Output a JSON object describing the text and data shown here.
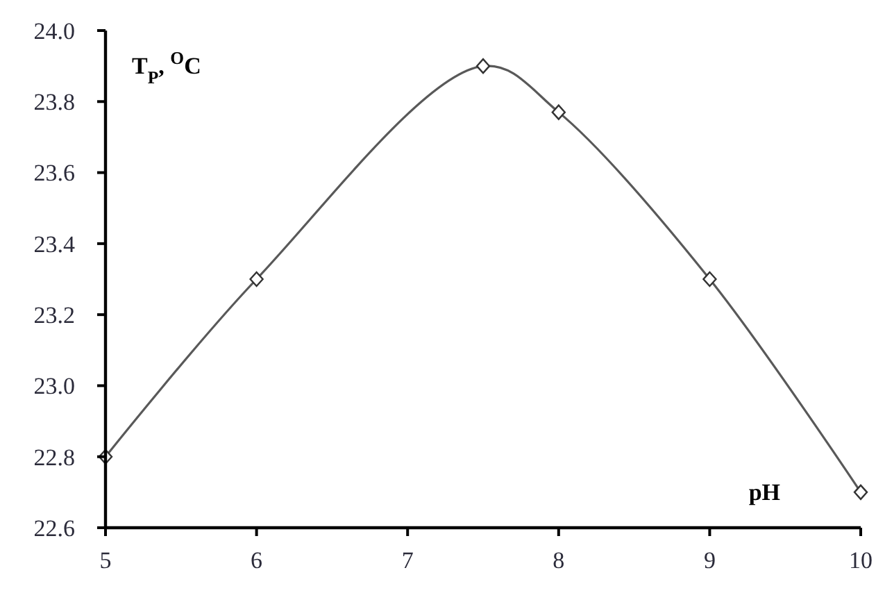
{
  "chart_data": {
    "type": "line",
    "xlabel": "pH",
    "ylabel": "T$_{P}$, $^{O}$C",
    "x": [
      5,
      6,
      7.5,
      8,
      9,
      10
    ],
    "series": [
      {
        "color": "#595959",
        "values": [
          22.8,
          23.3,
          23.9,
          23.77,
          23.3,
          22.7
        ]
      }
    ],
    "xlim": [
      5,
      10
    ],
    "xticks": [
      5,
      6,
      7,
      8,
      9,
      10
    ],
    "ylim": [
      22.6,
      24.0
    ],
    "yticks": [
      {
        "value": 22.6,
        "label": "22.6"
      },
      {
        "value": 22.8,
        "label": "22.8"
      },
      {
        "value": 23.0,
        "label": "23.0"
      },
      {
        "value": 23.2,
        "label": "23.2"
      },
      {
        "value": 23.4,
        "label": "23.4"
      },
      {
        "value": 23.6,
        "label": "23.6"
      },
      {
        "value": 23.8,
        "label": "23.8"
      },
      {
        "value": 24.0,
        "label": "24.0"
      }
    ],
    "grid": false,
    "marker": "diamond",
    "line_style": "solid"
  }
}
